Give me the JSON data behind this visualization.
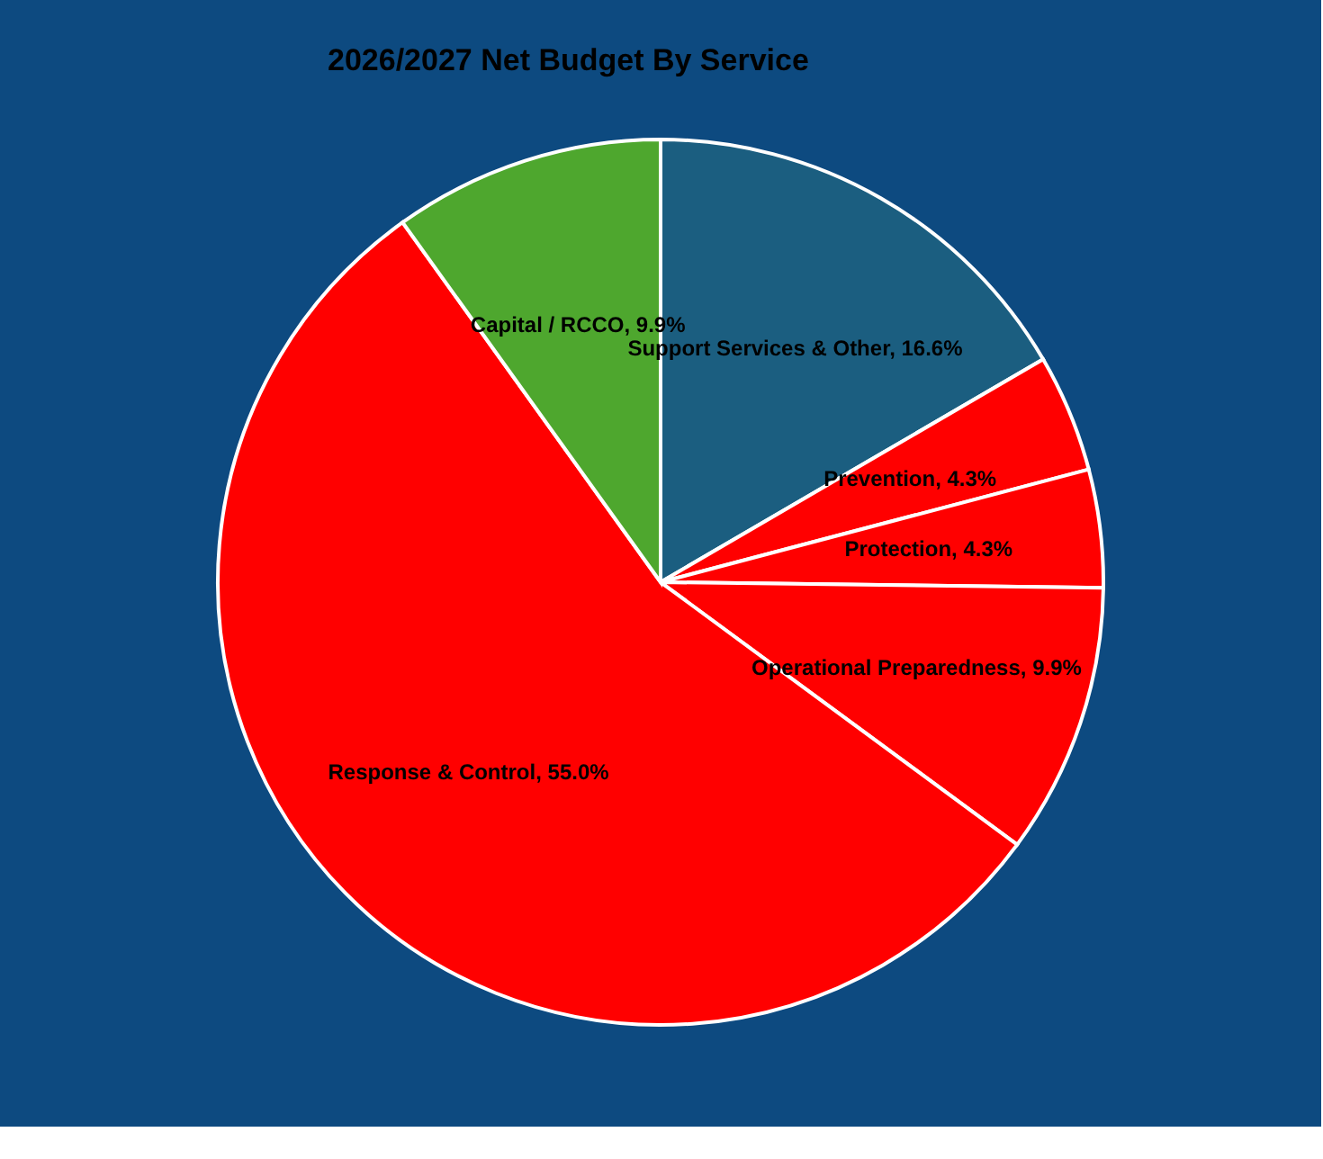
{
  "chart_data": {
    "type": "pie",
    "title": "2026/2027 Net Budget By Service",
    "categories": [
      "Support Services & Other",
      "Prevention",
      "Protection",
      "Operational Preparedness",
      "Response & Control",
      "Capital / RCCO"
    ],
    "values": [
      16.6,
      4.3,
      4.3,
      9.9,
      55.0,
      9.9
    ],
    "value_labels": [
      "16.6%",
      "4.3%",
      "4.3%",
      "9.9%",
      "55.0%",
      "9.9%"
    ],
    "colors": [
      "#1b5e80",
      "#ff0000",
      "#ff0000",
      "#ff0000",
      "#ff0000",
      "#4ea72e"
    ],
    "legend": false
  }
}
